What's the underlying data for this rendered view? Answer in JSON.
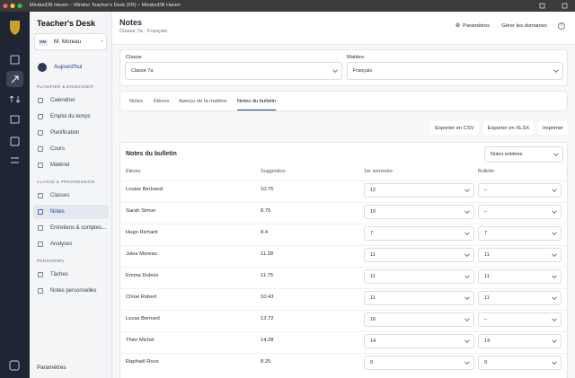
{
  "window": {
    "title": "MindooDB Haven – Mindoo Teacher's Desk (FR) – MindooDB Haven"
  },
  "sidebar": {
    "app_name": "Teacher's Desk",
    "user": {
      "initials": "MM",
      "name": "M. Moreau"
    },
    "today": "Aujourd'hui",
    "sections": [
      {
        "title": "PLANIFIER & ENSEIGNER",
        "items": [
          {
            "label": "Calendrier"
          },
          {
            "label": "Emploi du temps"
          },
          {
            "label": "Planification"
          },
          {
            "label": "Cours"
          },
          {
            "label": "Matériel"
          }
        ]
      },
      {
        "title": "CLASSE & PROGRESSION",
        "items": [
          {
            "label": "Classes"
          },
          {
            "label": "Notes",
            "active": true
          },
          {
            "label": "Entretiens & comptes..."
          },
          {
            "label": "Analyses"
          }
        ]
      },
      {
        "title": "PERSONNEL",
        "items": [
          {
            "label": "Tâches"
          },
          {
            "label": "Notes personnelles"
          }
        ]
      }
    ],
    "settings": "Paramètres"
  },
  "header": {
    "title": "Notes",
    "subtitle": "Classe 7a · Français",
    "buttons": [
      "Paramètres",
      "Gérer les domaines"
    ]
  },
  "filters": [
    {
      "label": "Classe",
      "value": "Classe 7a"
    },
    {
      "label": "Matière",
      "value": "Français"
    }
  ],
  "tabs": [
    {
      "label": "Notes"
    },
    {
      "label": "Élèves"
    },
    {
      "label": "Aperçu de la matière"
    },
    {
      "label": "Notes du bulletin",
      "active": true
    }
  ],
  "actions": [
    "Exporter en CSV",
    "Exporter en XLSX",
    "Imprimer"
  ],
  "table": {
    "title": "Notes du bulletin",
    "mode": "Notes entières",
    "columns": [
      "Élèves",
      "Suggestion",
      "1er semestre",
      "Bulletin"
    ],
    "rows": [
      [
        "Louise Bertrand",
        "10.75",
        "12",
        "–"
      ],
      [
        "Sarah Simon",
        "8.75",
        "10",
        "–"
      ],
      [
        "Hugo Richard",
        "8.4",
        "7",
        "7"
      ],
      [
        "Jules Moreau",
        "11.28",
        "11",
        "11"
      ],
      [
        "Emma Dubois",
        "11.75",
        "11",
        "11"
      ],
      [
        "Chloé Robert",
        "10.43",
        "11",
        "11"
      ],
      [
        "Lucas Bernard",
        "13.72",
        "16",
        "–"
      ],
      [
        "Théo Michel",
        "14.28",
        "14",
        "14"
      ],
      [
        "Raphaël Roux",
        "8.25",
        "9",
        "9"
      ]
    ]
  }
}
